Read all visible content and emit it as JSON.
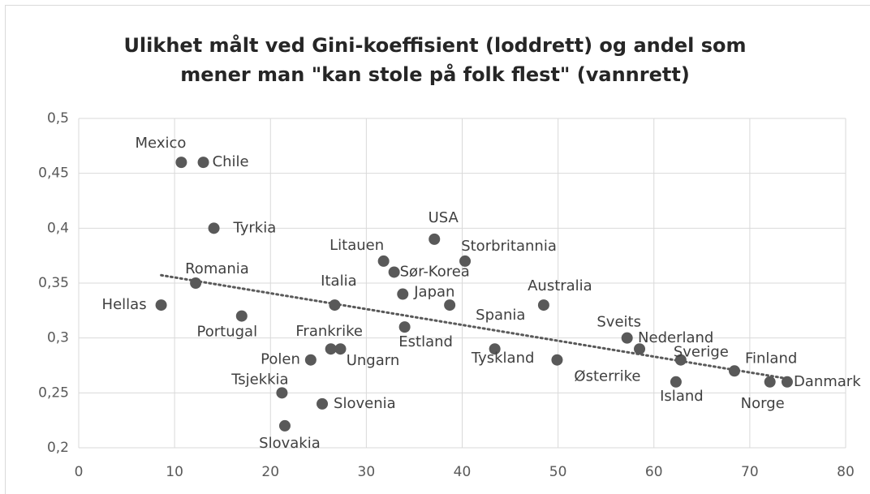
{
  "chart_data": {
    "type": "scatter",
    "title": "Ulikhet målt ved Gini-koeffisient (loddrett) og andel som mener man \"kan stole på folk flest\" (vannrett)",
    "categories": [
      "Mexico",
      "Chile",
      "Tyrkia",
      "Romania",
      "Hellas",
      "Portugal",
      "Italia",
      "Frankrike",
      "Ungarn",
      "Polen",
      "Tsjekkia",
      "Slovenia",
      "Slovakia",
      "Litauen",
      "Sør-Korea",
      "USA",
      "Storbritannia",
      "Japan",
      "Estland",
      "Spania",
      "Tyskland",
      "Australia",
      "Østerrike",
      "Sveits",
      "Nederland",
      "Sverige",
      "Island",
      "Finland",
      "Norge",
      "Danmark"
    ],
    "x": [
      10.7,
      13.0,
      14.1,
      12.2,
      8.6,
      17.0,
      26.7,
      26.3,
      27.3,
      24.2,
      21.2,
      25.4,
      21.5,
      31.8,
      32.9,
      37.1,
      40.3,
      33.8,
      34.0,
      38.7,
      43.4,
      48.5,
      49.9,
      57.2,
      58.5,
      62.8,
      62.3,
      68.4,
      72.1,
      73.9
    ],
    "values": [
      0.46,
      0.46,
      0.4,
      0.35,
      0.33,
      0.32,
      0.33,
      0.29,
      0.29,
      0.28,
      0.25,
      0.24,
      0.22,
      0.37,
      0.36,
      0.39,
      0.37,
      0.34,
      0.31,
      0.33,
      0.29,
      0.33,
      0.28,
      0.3,
      0.29,
      0.28,
      0.26,
      0.27,
      0.26,
      0.26
    ],
    "color": "#595959",
    "trendline": true,
    "xlim": [
      0,
      80
    ],
    "xticks": [
      0,
      10,
      20,
      30,
      40,
      50,
      60,
      70,
      80
    ],
    "ylim": [
      0.2,
      0.5
    ],
    "yticks": [
      {
        "value": 0.2,
        "label": "0,2"
      },
      {
        "value": 0.25,
        "label": "0,25"
      },
      {
        "value": 0.3,
        "label": "0,3"
      },
      {
        "value": 0.35,
        "label": "0,35"
      },
      {
        "value": 0.4,
        "label": "0,4"
      },
      {
        "value": 0.45,
        "label": "0,45"
      },
      {
        "value": 0.5,
        "label": "0,5"
      }
    ],
    "grid": true
  }
}
